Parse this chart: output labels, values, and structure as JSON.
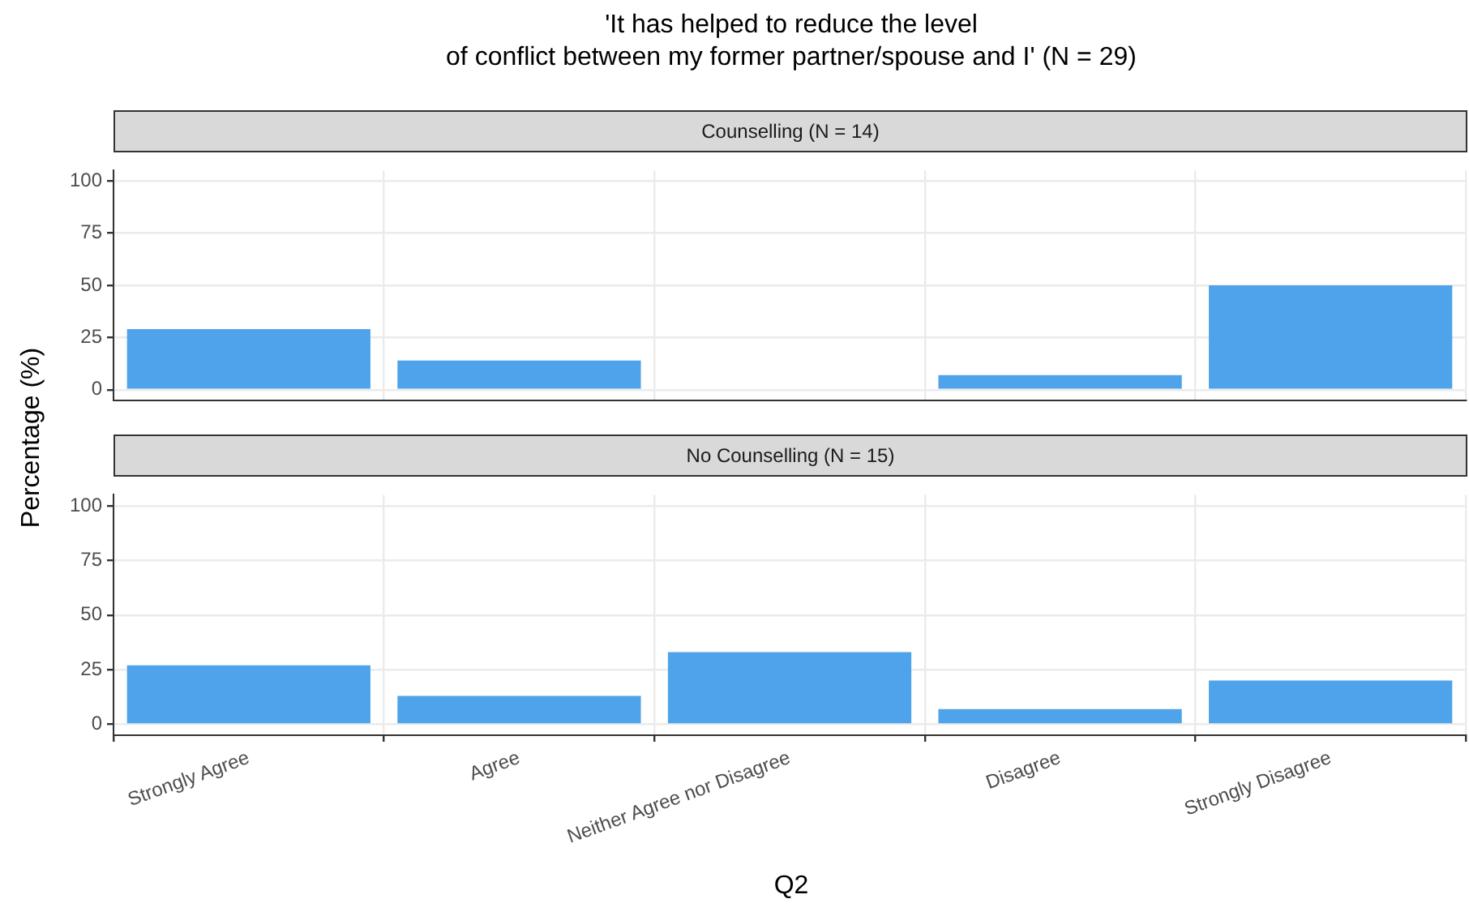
{
  "chart_data": [
    {
      "type": "bar",
      "title": "'It has helped to reduce the level\nof conflict between my former partner/spouse and I' (N = 29)",
      "subtitle": "Counselling (N = 14)",
      "ylabel": "Percentage (%)",
      "categories": [
        null,
        null,
        null,
        null,
        null
      ],
      "values": [
        29,
        14,
        0,
        7,
        50
      ],
      "color": "#4ea3ea",
      "ylim": [
        -5,
        105
      ],
      "yticks": [
        0,
        25,
        50,
        75,
        100
      ],
      "grid": true,
      "tick_labels": "y"
    },
    {
      "type": "bar",
      "subtitle": "No Counselling (N = 15)",
      "xlabel": "Q2",
      "categories": [
        "Strongly Agree",
        "Agree",
        "Neither Agree nor Disagree",
        "Disagree",
        "Strongly Disagree"
      ],
      "values": [
        27,
        13,
        33,
        7,
        20
      ],
      "color": "#4ea3ea",
      "ylim": [
        -5,
        105
      ],
      "yticks": [
        0,
        25,
        50,
        75,
        100
      ],
      "grid": true
    }
  ]
}
